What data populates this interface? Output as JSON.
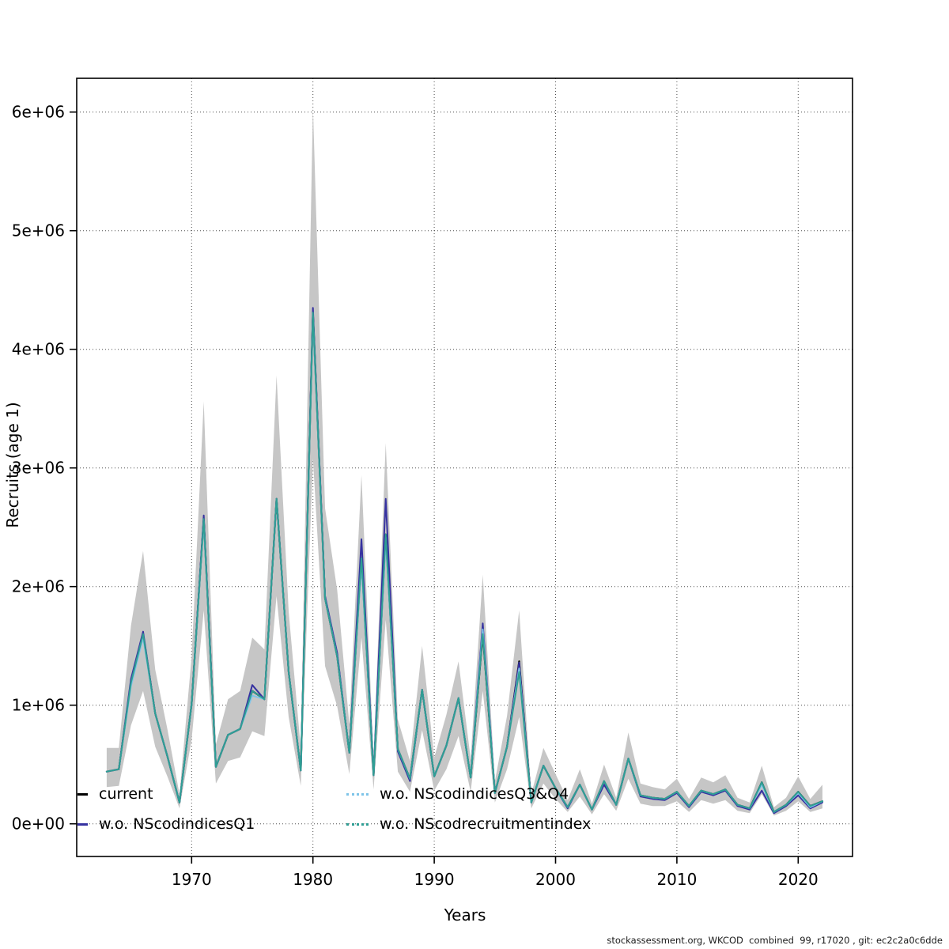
{
  "figure": {
    "footer": "stockassessment.org, WKCOD  combined  99, r17020 , git: ec2c2a0c6dde",
    "background": "#ffffff"
  },
  "chart_data": {
    "type": "line",
    "title": "",
    "xlabel": "Years",
    "ylabel": "Recruits (age 1)",
    "grid": "dotted both axes at ticks",
    "legend_position": "bottom-left inside plot, two columns",
    "xlim": [
      1960.6,
      2024.5
    ],
    "ylim_millions": [
      -0.28,
      6.28
    ],
    "x_ticks": [
      1970,
      1980,
      1990,
      2000,
      2010,
      2020
    ],
    "y_ticks": [
      {
        "value": 0,
        "label": "0e+00"
      },
      {
        "value": 1,
        "label": "1e+06"
      },
      {
        "value": 2,
        "label": "2e+06"
      },
      {
        "value": 3,
        "label": "3e+06"
      },
      {
        "value": 4,
        "label": "4e+06"
      },
      {
        "value": 5,
        "label": "5e+06"
      },
      {
        "value": 6,
        "label": "6e+06"
      }
    ],
    "x": [
      1963,
      1964,
      1965,
      1966,
      1967,
      1968,
      1969,
      1970,
      1971,
      1972,
      1973,
      1974,
      1975,
      1976,
      1977,
      1978,
      1979,
      1980,
      1981,
      1982,
      1983,
      1984,
      1985,
      1986,
      1987,
      1988,
      1989,
      1990,
      1991,
      1992,
      1993,
      1994,
      1995,
      1996,
      1997,
      1998,
      1999,
      2000,
      2001,
      2002,
      2003,
      2004,
      2005,
      2006,
      2007,
      2008,
      2009,
      2010,
      2011,
      2012,
      2013,
      2014,
      2015,
      2016,
      2017,
      2018,
      2019,
      2020,
      2021,
      2022
    ],
    "units": "millions of recruits (1e6)",
    "band": {
      "name": "confidence band (current)",
      "color": "#c6c6c6",
      "lo": [
        0.31,
        0.32,
        0.83,
        1.12,
        0.65,
        0.4,
        0.13,
        0.71,
        1.8,
        0.34,
        0.53,
        0.56,
        0.78,
        0.74,
        1.92,
        0.9,
        0.32,
        3.08,
        1.33,
        0.99,
        0.42,
        1.57,
        0.29,
        1.72,
        0.44,
        0.27,
        0.79,
        0.28,
        0.46,
        0.74,
        0.27,
        1.12,
        0.18,
        0.46,
        0.9,
        0.13,
        0.34,
        0.21,
        0.1,
        0.23,
        0.08,
        0.25,
        0.11,
        0.38,
        0.17,
        0.15,
        0.15,
        0.19,
        0.1,
        0.2,
        0.17,
        0.2,
        0.11,
        0.09,
        0.25,
        0.07,
        0.11,
        0.19,
        0.1,
        0.13
      ],
      "hi": [
        0.64,
        0.64,
        1.67,
        2.3,
        1.3,
        0.8,
        0.25,
        1.41,
        3.56,
        0.67,
        1.05,
        1.12,
        1.57,
        1.47,
        3.78,
        1.79,
        0.63,
        6.05,
        2.66,
        1.97,
        0.84,
        2.94,
        0.57,
        3.21,
        0.88,
        0.53,
        1.5,
        0.56,
        0.92,
        1.37,
        0.55,
        2.1,
        0.36,
        0.91,
        1.8,
        0.25,
        0.64,
        0.42,
        0.2,
        0.46,
        0.17,
        0.5,
        0.22,
        0.77,
        0.34,
        0.31,
        0.29,
        0.38,
        0.21,
        0.39,
        0.35,
        0.41,
        0.22,
        0.18,
        0.49,
        0.14,
        0.22,
        0.4,
        0.21,
        0.33
      ]
    },
    "series": [
      {
        "name": "current",
        "color": "#000000",
        "style": "solid",
        "width": 2.2,
        "values": [
          0.44,
          0.46,
          1.19,
          1.6,
          0.93,
          0.57,
          0.18,
          1.01,
          2.57,
          0.48,
          0.75,
          0.8,
          1.12,
          1.05,
          2.74,
          1.28,
          0.45,
          4.31,
          1.9,
          1.41,
          0.6,
          2.24,
          0.41,
          2.44,
          0.63,
          0.38,
          1.13,
          0.4,
          0.66,
          1.06,
          0.39,
          1.6,
          0.26,
          0.65,
          1.37,
          0.18,
          0.49,
          0.3,
          0.14,
          0.33,
          0.12,
          0.36,
          0.16,
          0.55,
          0.24,
          0.22,
          0.21,
          0.27,
          0.15,
          0.28,
          0.25,
          0.29,
          0.16,
          0.13,
          0.35,
          0.1,
          0.16,
          0.27,
          0.15,
          0.19
        ]
      },
      {
        "name": "w.o. NScodindicesQ1",
        "color": "#3632a0",
        "style": "solid",
        "width": 2,
        "values": [
          0.44,
          0.46,
          1.22,
          1.62,
          0.93,
          0.57,
          0.18,
          1.01,
          2.6,
          0.48,
          0.75,
          0.8,
          1.17,
          1.05,
          2.74,
          1.28,
          0.45,
          4.35,
          1.92,
          1.44,
          0.6,
          2.4,
          0.41,
          2.74,
          0.61,
          0.36,
          1.13,
          0.4,
          0.66,
          1.06,
          0.39,
          1.69,
          0.26,
          0.65,
          1.36,
          0.18,
          0.49,
          0.3,
          0.13,
          0.33,
          0.12,
          0.33,
          0.16,
          0.55,
          0.23,
          0.21,
          0.2,
          0.26,
          0.14,
          0.27,
          0.24,
          0.28,
          0.15,
          0.12,
          0.28,
          0.09,
          0.15,
          0.24,
          0.13,
          0.18
        ]
      },
      {
        "name": "w.o. NScodindicesQ3&Q4",
        "color": "#7ec4e8",
        "style": "dotted",
        "width": 2,
        "values": [
          0.44,
          0.46,
          1.16,
          1.57,
          0.93,
          0.57,
          0.18,
          1.01,
          2.55,
          0.48,
          0.75,
          0.8,
          1.08,
          1.05,
          2.74,
          1.28,
          0.45,
          4.28,
          1.9,
          1.41,
          0.6,
          2.2,
          0.41,
          2.4,
          0.63,
          0.38,
          1.13,
          0.4,
          0.66,
          1.06,
          0.39,
          1.64,
          0.26,
          0.65,
          1.31,
          0.18,
          0.49,
          0.3,
          0.14,
          0.33,
          0.12,
          0.36,
          0.16,
          0.55,
          0.24,
          0.22,
          0.21,
          0.27,
          0.15,
          0.28,
          0.25,
          0.29,
          0.16,
          0.13,
          0.33,
          0.1,
          0.16,
          0.26,
          0.14,
          0.19
        ]
      },
      {
        "name": "w.o. NScodrecruitmentindex",
        "color": "#2f9e94",
        "style": "dotted",
        "width": 2,
        "values": [
          0.44,
          0.46,
          1.19,
          1.6,
          0.93,
          0.57,
          0.18,
          1.01,
          2.57,
          0.48,
          0.75,
          0.8,
          1.12,
          1.05,
          2.74,
          1.28,
          0.45,
          4.31,
          1.9,
          1.41,
          0.6,
          2.24,
          0.41,
          2.44,
          0.63,
          0.38,
          1.13,
          0.4,
          0.66,
          1.06,
          0.39,
          1.6,
          0.26,
          0.65,
          1.28,
          0.18,
          0.49,
          0.3,
          0.14,
          0.33,
          0.12,
          0.36,
          0.16,
          0.55,
          0.24,
          0.22,
          0.21,
          0.27,
          0.15,
          0.28,
          0.25,
          0.29,
          0.16,
          0.13,
          0.35,
          0.1,
          0.16,
          0.27,
          0.15,
          0.19
        ]
      }
    ],
    "legend": [
      {
        "label": "current",
        "color": "#000000",
        "style": "solid"
      },
      {
        "label": "w.o. NScodindicesQ1",
        "color": "#3632a0",
        "style": "solid"
      },
      {
        "label": "w.o. NScodindicesQ3&Q4",
        "color": "#7ec4e8",
        "style": "dotted"
      },
      {
        "label": "w.o. NScodrecruitmentindex",
        "color": "#2f9e94",
        "style": "dotted"
      }
    ]
  }
}
